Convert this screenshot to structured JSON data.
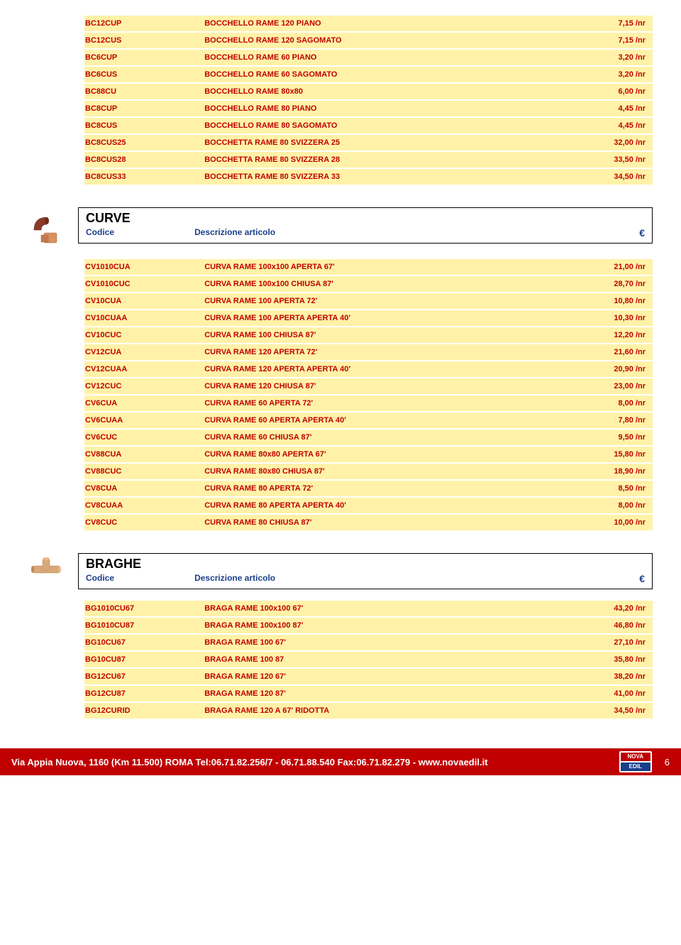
{
  "colors": {
    "text_red": "#c00000",
    "row_yellow": "#fff2a8",
    "header_blue": "#1a3f8a",
    "footer_bg": "#c00000",
    "footer_text": "#ffffff",
    "copper": "#c87850"
  },
  "top_rows": [
    {
      "code": "BC12CUP",
      "desc": "BOCCHELLO RAME 120 PIANO",
      "price": "7,15 /nr"
    },
    {
      "code": "BC12CUS",
      "desc": "BOCCHELLO RAME 120 SAGOMATO",
      "price": "7,15 /nr"
    },
    {
      "code": "BC6CUP",
      "desc": "BOCCHELLO RAME 60 PIANO",
      "price": "3,20 /nr"
    },
    {
      "code": "BC6CUS",
      "desc": "BOCCHELLO RAME 60 SAGOMATO",
      "price": "3,20 /nr"
    },
    {
      "code": "BC88CU",
      "desc": "BOCCHELLO RAME 80x80",
      "price": "6,00 /nr"
    },
    {
      "code": "BC8CUP",
      "desc": "BOCCHELLO RAME 80 PIANO",
      "price": "4,45 /nr"
    },
    {
      "code": "BC8CUS",
      "desc": "BOCCHELLO RAME 80 SAGOMATO",
      "price": "4,45 /nr"
    },
    {
      "code": "BC8CUS25",
      "desc": "BOCCHETTA RAME 80 SVIZZERA 25",
      "price": "32,00 /nr"
    },
    {
      "code": "BC8CUS28",
      "desc": "BOCCHETTA RAME 80 SVIZZERA 28",
      "price": "33,50 /nr"
    },
    {
      "code": "BC8CUS33",
      "desc": "BOCCHETTA RAME 80 SVIZZERA 33",
      "price": "34,50 /nr"
    }
  ],
  "curve": {
    "title": "CURVE",
    "sub_code": "Codice",
    "sub_desc": "Descrizione articolo",
    "sub_euro": "€",
    "rows": [
      {
        "code": "CV1010CUA",
        "desc": "CURVA RAME 100x100 APERTA 67'",
        "price": "21,00 /nr"
      },
      {
        "code": "CV1010CUC",
        "desc": "CURVA RAME 100x100 CHIUSA 87'",
        "price": "28,70 /nr"
      },
      {
        "code": "CV10CUA",
        "desc": "CURVA RAME 100 APERTA 72'",
        "price": "10,80 /nr"
      },
      {
        "code": "CV10CUAA",
        "desc": "CURVA RAME 100 APERTA APERTA 40'",
        "price": "10,30 /nr"
      },
      {
        "code": "CV10CUC",
        "desc": "CURVA RAME 100 CHIUSA 87'",
        "price": "12,20 /nr"
      },
      {
        "code": "CV12CUA",
        "desc": "CURVA RAME 120 APERTA 72'",
        "price": "21,60 /nr"
      },
      {
        "code": "CV12CUAA",
        "desc": "CURVA RAME 120 APERTA APERTA 40'",
        "price": "20,90 /nr"
      },
      {
        "code": "CV12CUC",
        "desc": "CURVA RAME 120 CHIUSA 87'",
        "price": "23,00 /nr"
      },
      {
        "code": "CV6CUA",
        "desc": "CURVA RAME 60 APERTA 72'",
        "price": "8,00 /nr"
      },
      {
        "code": "CV6CUAA",
        "desc": "CURVA RAME 60 APERTA APERTA 40'",
        "price": "7,80 /nr"
      },
      {
        "code": "CV6CUC",
        "desc": "CURVA RAME 60 CHIUSA 87'",
        "price": "9,50 /nr"
      },
      {
        "code": "CV88CUA",
        "desc": "CURVA RAME 80x80 APERTA 67'",
        "price": "15,80 /nr"
      },
      {
        "code": "CV88CUC",
        "desc": "CURVA RAME 80x80 CHIUSA 87'",
        "price": "18,90 /nr"
      },
      {
        "code": "CV8CUA",
        "desc": "CURVA RAME 80 APERTA 72'",
        "price": "8,50 /nr"
      },
      {
        "code": "CV8CUAA",
        "desc": "CURVA RAME 80 APERTA APERTA 40'",
        "price": "8,00 /nr"
      },
      {
        "code": "CV8CUC",
        "desc": "CURVA RAME 80 CHIUSA 87'",
        "price": "10,00 /nr"
      }
    ]
  },
  "braghe": {
    "title": "BRAGHE",
    "sub_code": "Codice",
    "sub_desc": "Descrizione articolo",
    "sub_euro": "€",
    "rows": [
      {
        "code": "BG1010CU67",
        "desc": "BRAGA RAME 100x100 67'",
        "price": "43,20 /nr"
      },
      {
        "code": "BG1010CU87",
        "desc": "BRAGA RAME 100x100 87'",
        "price": "46,80 /nr"
      },
      {
        "code": "BG10CU67",
        "desc": "BRAGA RAME 100 67'",
        "price": "27,10 /nr"
      },
      {
        "code": "BG10CU87",
        "desc": "BRAGA RAME 100 87",
        "price": "35,80 /nr"
      },
      {
        "code": "BG12CU67",
        "desc": "BRAGA RAME 120 67'",
        "price": "38,20 /nr"
      },
      {
        "code": "BG12CU87",
        "desc": "BRAGA RAME 120 87'",
        "price": "41,00 /nr"
      },
      {
        "code": "BG12CURID",
        "desc": "BRAGA RAME 120 A 67' RIDOTTA",
        "price": "34,50 /nr"
      }
    ]
  },
  "footer": {
    "text": "Via Appia Nuova, 1160 (Km 11.500) ROMA Tel:06.71.82.256/7 - 06.71.88.540 Fax:06.71.82.279 - www.novaedil.it",
    "logo_top": "NOVA",
    "logo_bot": "EDIL",
    "page": "6"
  }
}
